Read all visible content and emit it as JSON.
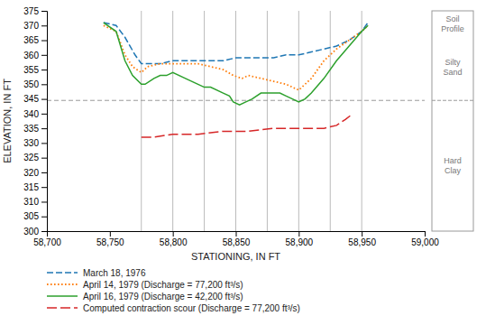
{
  "chart_data": {
    "type": "line",
    "xlabel": "STATIONING, IN FT",
    "ylabel": "ELEVATION, IN FT",
    "xlim": [
      58700,
      59000
    ],
    "ylim": [
      300,
      375
    ],
    "xticks": [
      {
        "value": 58700,
        "label": "58,700"
      },
      {
        "value": 58750,
        "label": "58,750"
      },
      {
        "value": 58800,
        "label": "58,800"
      },
      {
        "value": 58850,
        "label": "58,850"
      },
      {
        "value": 58900,
        "label": "58,900"
      },
      {
        "value": 58950,
        "label": "58,950"
      },
      {
        "value": 59000,
        "label": "59,000"
      }
    ],
    "yticks": [
      300,
      305,
      310,
      315,
      320,
      325,
      330,
      335,
      340,
      345,
      350,
      355,
      360,
      365,
      370,
      375
    ],
    "grid": false,
    "legend": "bottom",
    "series": [
      {
        "name": "March 18, 1976",
        "line_style": "dashed",
        "x": [
          58745,
          58755,
          58762,
          58770,
          58775,
          58790,
          58800,
          58810,
          58820,
          58830,
          58840,
          58850,
          58860,
          58870,
          58880,
          58890,
          58900,
          58910,
          58920,
          58930,
          58940,
          58950,
          58955
        ],
        "values": [
          371,
          370,
          366,
          360,
          357,
          357,
          358,
          358,
          358,
          358,
          358,
          359,
          359,
          359,
          359,
          360,
          360,
          361,
          362,
          363,
          365,
          368,
          371
        ]
      },
      {
        "name": "April 14, 1979 (Discharge = 77,200 ft³/s)",
        "line_style": "dotted",
        "x": [
          58745,
          58755,
          58762,
          58768,
          58775,
          58780,
          58790,
          58800,
          58810,
          58820,
          58830,
          58840,
          58848,
          58855,
          58860,
          58870,
          58880,
          58890,
          58895,
          58900,
          58905,
          58910,
          58920,
          58930,
          58940,
          58950,
          58955
        ],
        "values": [
          370,
          368,
          360,
          356,
          354,
          356,
          357,
          357,
          357,
          357,
          356,
          355,
          353,
          352,
          353,
          352,
          351,
          350,
          349,
          348,
          350,
          352,
          358,
          362,
          365,
          368,
          370
        ]
      },
      {
        "name": "April 16, 1979 (Discharge = 42,200 ft³/s)",
        "line_style": "solid",
        "x": [
          58745,
          58755,
          58762,
          58768,
          58775,
          58778,
          58785,
          58790,
          58795,
          58800,
          58810,
          58815,
          58820,
          58825,
          58830,
          58840,
          58845,
          58848,
          58853,
          58858,
          58863,
          58870,
          58880,
          58885,
          58890,
          58895,
          58900,
          58905,
          58910,
          58920,
          58930,
          58940,
          58950,
          58955
        ],
        "values": [
          371,
          368,
          358,
          353,
          350,
          350,
          352,
          353,
          353,
          354,
          352,
          351,
          350,
          349,
          349,
          347,
          346,
          344,
          343,
          344,
          345,
          347,
          347,
          347,
          346,
          345,
          344,
          345,
          347,
          352,
          358,
          363,
          368,
          370
        ]
      },
      {
        "name": "Computed contraction scour (Discharge = 77,200 ft³/s)",
        "line_style": "longdash",
        "x": [
          58775,
          58785,
          58800,
          58820,
          58840,
          58860,
          58880,
          58900,
          58920,
          58930,
          58937,
          58943
        ],
        "values": [
          332,
          332,
          333,
          333,
          334,
          334,
          335,
          335,
          335,
          336,
          338,
          340
        ]
      }
    ],
    "hline": 344.5,
    "vlines": [
      58775,
      58800,
      58825,
      58850,
      58875,
      58900,
      58925,
      58950
    ],
    "soil_profile": {
      "label": "Soil\nProfile",
      "top": 375,
      "bottom": 300,
      "boundary": 344.5,
      "layers": [
        "Silty\nSand",
        "Hard\nClay"
      ]
    }
  }
}
